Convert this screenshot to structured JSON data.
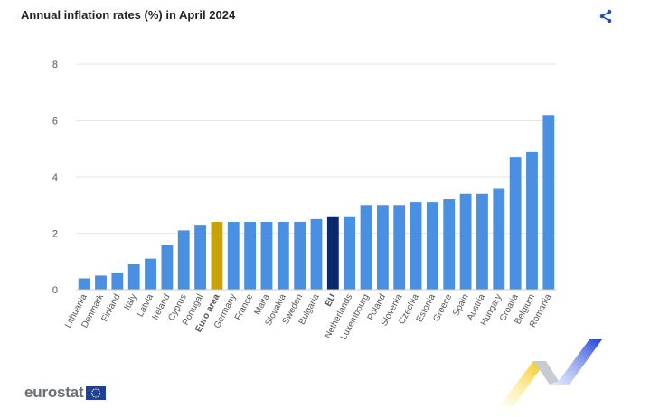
{
  "header": {
    "title": "Annual inflation rates (%) in April 2024",
    "share_icon": "share-icon"
  },
  "brand": {
    "logo_text": "eurostat",
    "flag_icon": "eu-flag-icon"
  },
  "colors": {
    "default_bar": "#4a90e2",
    "euro_area_bar": "#c9a20a",
    "eu_bar": "#0b2a6e",
    "grid": "#e6e6e6",
    "axis_text": "#555555"
  },
  "chart_data": {
    "type": "bar",
    "title": "Annual inflation rates (%) in April 2024",
    "xlabel": "",
    "ylabel": "",
    "ylim": [
      0,
      8
    ],
    "yticks": [
      0,
      2,
      4,
      6,
      8
    ],
    "grid": true,
    "categories": [
      "Lithuania",
      "Denmark",
      "Finland",
      "Italy",
      "Latvia",
      "Ireland",
      "Cyprus",
      "Portugal",
      "Euro area",
      "Germany",
      "France",
      "Malta",
      "Slovakia",
      "Sweden",
      "Bulgaria",
      "EU",
      "Netherlands",
      "Luxembourg",
      "Poland",
      "Slovenia",
      "Czechia",
      "Estonia",
      "Greece",
      "Spain",
      "Austria",
      "Hungary",
      "Croatia",
      "Belgium",
      "Romania"
    ],
    "values": [
      0.4,
      0.5,
      0.6,
      0.9,
      1.1,
      1.6,
      2.1,
      2.3,
      2.4,
      2.4,
      2.4,
      2.4,
      2.4,
      2.4,
      2.5,
      2.6,
      2.6,
      3.0,
      3.0,
      3.0,
      3.1,
      3.1,
      3.2,
      3.4,
      3.4,
      3.6,
      4.7,
      4.9,
      6.2
    ],
    "highlight": {
      "Euro area": "euro_area_bar",
      "EU": "eu_bar"
    }
  }
}
